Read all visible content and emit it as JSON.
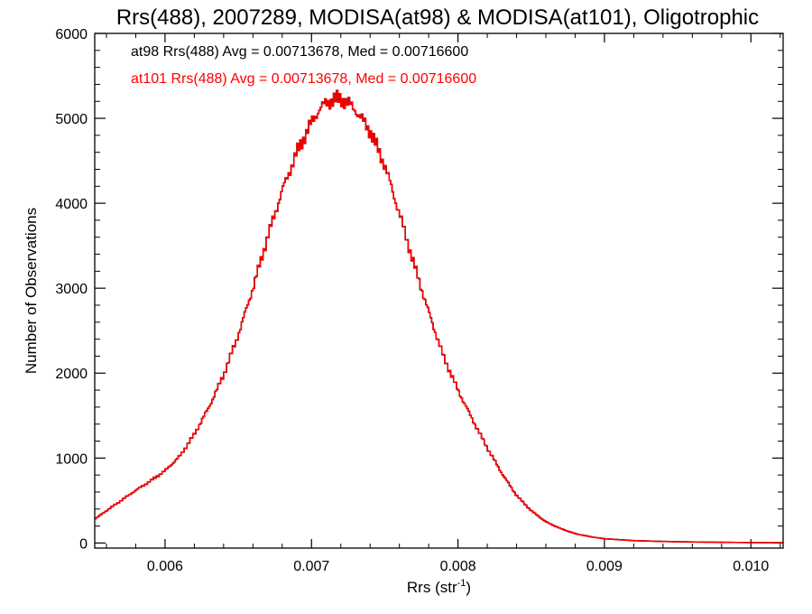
{
  "chart_data": {
    "type": "histogram",
    "title": "Rrs(488), 2007289, MODISA(at98) & MODISA(at101), Oligotrophic",
    "xlabel_base": "Rrs (str",
    "xlabel_sup": "-1",
    "xlabel_close": ")",
    "ylabel": "Number of Observations",
    "xlim": [
      0.00552,
      0.01022
    ],
    "ylim": [
      -60,
      6000
    ],
    "x_ticks": [
      0.006,
      0.007,
      0.008,
      0.009,
      0.01
    ],
    "x_tick_labels": [
      "0.006",
      "0.007",
      "0.008",
      "0.009",
      "0.010"
    ],
    "y_ticks": [
      0,
      1000,
      2000,
      3000,
      4000,
      5000,
      6000
    ],
    "y_tick_labels": [
      "0",
      "1000",
      "2000",
      "3000",
      "4000",
      "5000",
      "6000"
    ],
    "grid": false,
    "annotations": [
      {
        "text": "at98 Rrs(488) Avg = 0.00713678, Med = 0.00716600",
        "color": "#000000"
      },
      {
        "text": "at101 Rrs(488) Avg = 0.00713678, Med = 0.00716600",
        "color": "#ff0000"
      }
    ],
    "series": [
      {
        "name": "at98",
        "color": "#000000",
        "x": [
          0.00552,
          0.0056,
          0.0057,
          0.0058,
          0.0059,
          0.006,
          0.0061,
          0.0062,
          0.0063,
          0.0064,
          0.0065,
          0.0066,
          0.0067,
          0.0068,
          0.0069,
          0.007,
          0.00705,
          0.0071,
          0.00715,
          0.0072,
          0.00725,
          0.0073,
          0.0074,
          0.0075,
          0.0076,
          0.0077,
          0.0078,
          0.0079,
          0.008,
          0.0081,
          0.0082,
          0.0083,
          0.0084,
          0.0085,
          0.0086,
          0.0087,
          0.0088,
          0.0089,
          0.009,
          0.0092,
          0.0094,
          0.0096,
          0.0098,
          0.01,
          0.01022
        ],
        "y": [
          280,
          380,
          500,
          620,
          730,
          850,
          1020,
          1280,
          1600,
          1980,
          2450,
          3000,
          3600,
          4150,
          4600,
          4950,
          5100,
          5180,
          5220,
          5230,
          5180,
          5100,
          4850,
          4450,
          3880,
          3280,
          2720,
          2200,
          1800,
          1450,
          1120,
          820,
          560,
          380,
          250,
          170,
          110,
          75,
          50,
          28,
          18,
          12,
          8,
          5,
          3
        ]
      },
      {
        "name": "at101",
        "color": "#ff0000",
        "x": [
          0.00552,
          0.0056,
          0.0057,
          0.0058,
          0.0059,
          0.006,
          0.0061,
          0.0062,
          0.0063,
          0.0064,
          0.0065,
          0.0066,
          0.0067,
          0.0068,
          0.0069,
          0.007,
          0.00705,
          0.0071,
          0.00715,
          0.0072,
          0.00725,
          0.0073,
          0.0074,
          0.0075,
          0.0076,
          0.0077,
          0.0078,
          0.0079,
          0.008,
          0.0081,
          0.0082,
          0.0083,
          0.0084,
          0.0085,
          0.0086,
          0.0087,
          0.0088,
          0.0089,
          0.009,
          0.0092,
          0.0094,
          0.0096,
          0.0098,
          0.01,
          0.01022
        ],
        "y": [
          280,
          380,
          500,
          620,
          730,
          850,
          1020,
          1280,
          1600,
          1980,
          2450,
          3000,
          3600,
          4150,
          4600,
          4950,
          5100,
          5180,
          5220,
          5230,
          5180,
          5100,
          4850,
          4450,
          3880,
          3280,
          2720,
          2200,
          1800,
          1450,
          1120,
          820,
          560,
          380,
          250,
          170,
          110,
          75,
          50,
          28,
          18,
          12,
          8,
          5,
          3
        ]
      }
    ]
  }
}
